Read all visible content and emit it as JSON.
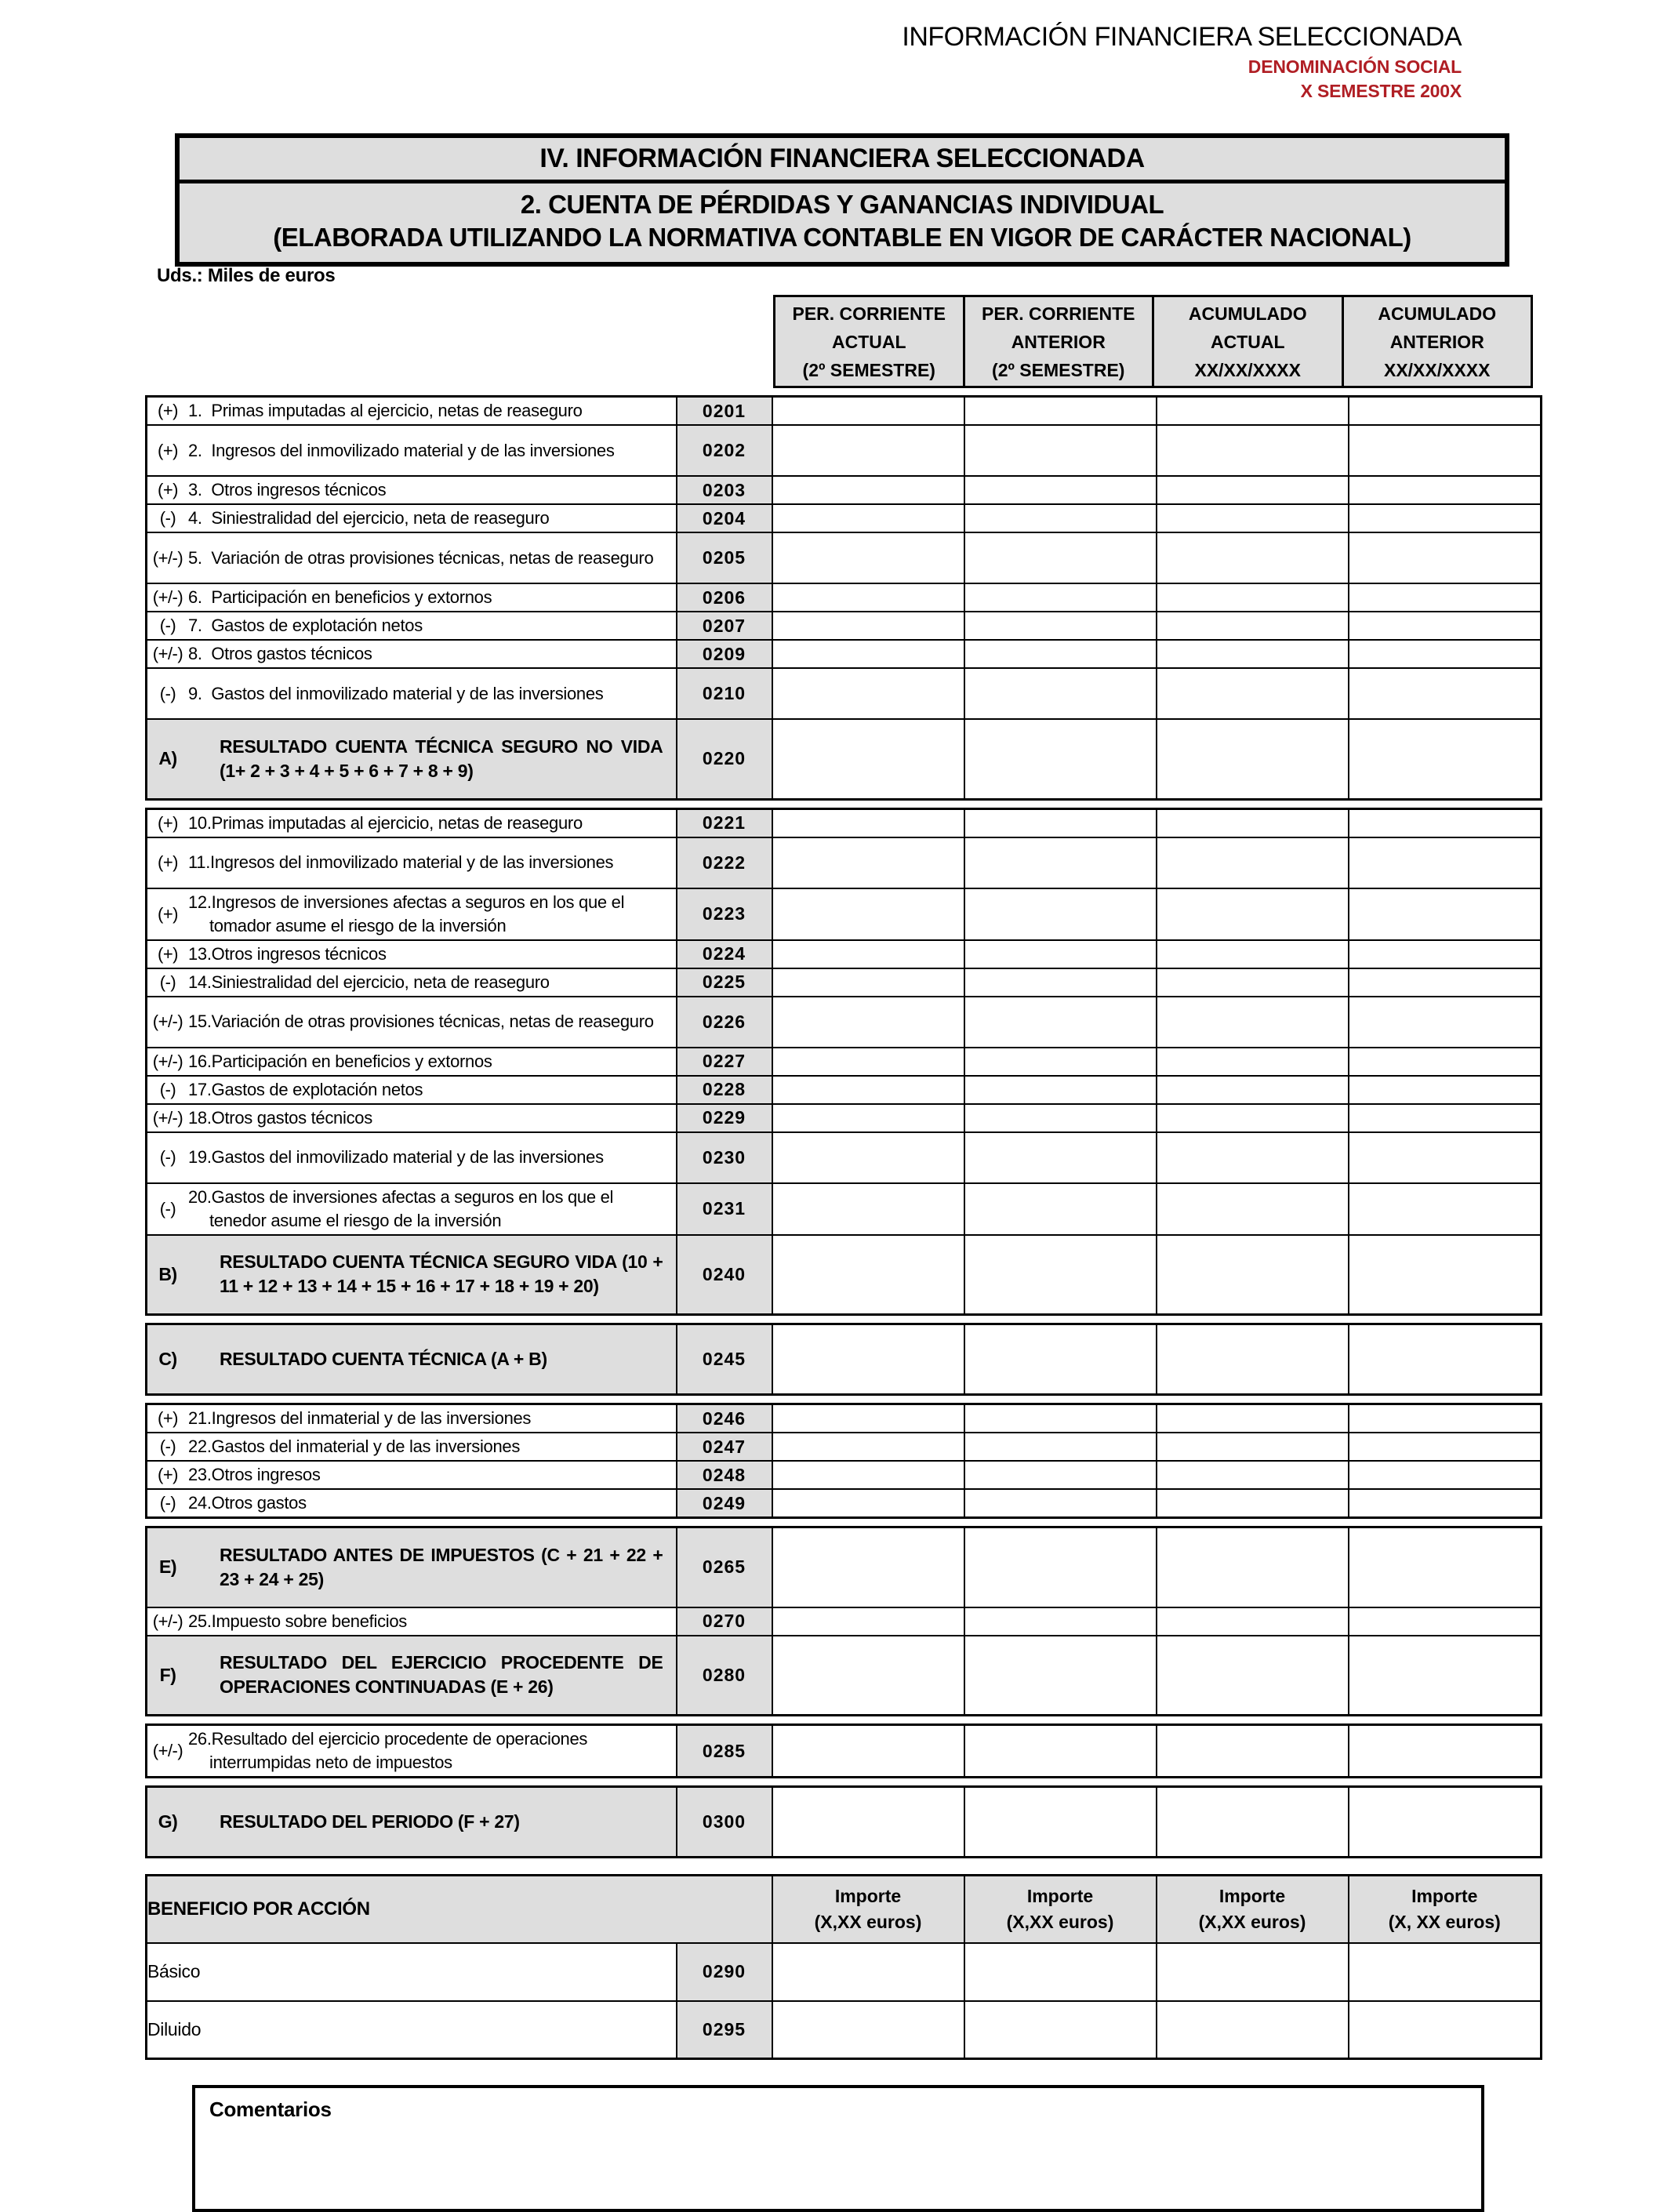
{
  "colors": {
    "accent_red": "#B01E24",
    "cell_gray": "#DEDEDE"
  },
  "doc_header": {
    "line1": "INFORMACIÓN FINANCIERA SELECCIONADA",
    "line2": "DENOMINACIÓN SOCIAL",
    "line3": "X SEMESTRE 200X"
  },
  "title_box": {
    "line1": "IV. INFORMACIÓN FINANCIERA SELECCIONADA",
    "line2": "2. CUENTA DE PÉRDIDAS Y GANANCIAS INDIVIDUAL",
    "line3": "(ELABORADA UTILIZANDO LA NORMATIVA CONTABLE EN VIGOR DE CARÁCTER NACIONAL)"
  },
  "units_label": "Uds.: Miles de euros",
  "column_headers": [
    {
      "line1": "PER. CORRIENTE",
      "line2": "ACTUAL",
      "line3": "(2º SEMESTRE)"
    },
    {
      "line1": "PER. CORRIENTE",
      "line2": "ANTERIOR",
      "line3": "(2º SEMESTRE)"
    },
    {
      "line1": "ACUMULADO",
      "line2": "ACTUAL",
      "line3": "XX/XX/XXXX"
    },
    {
      "line1": "ACUMULADO",
      "line2": "ANTERIOR",
      "line3": "XX/XX/XXXX"
    }
  ],
  "table": {
    "value_columns": 4,
    "blocks": [
      {
        "rows": [
          {
            "type": "item",
            "sign": "(+)",
            "text": "1.  Primas imputadas al ejercicio, netas de reaseguro",
            "code": "0201",
            "lines": 1
          },
          {
            "type": "item",
            "sign": "(+)",
            "text": "2.  Ingresos del inmovilizado material y de las inversiones",
            "code": "0202",
            "lines": 2
          },
          {
            "type": "item",
            "sign": "(+)",
            "text": "3.  Otros ingresos técnicos",
            "code": "0203",
            "lines": 1
          },
          {
            "type": "item",
            "sign": "(-)",
            "text": "4.  Siniestralidad del ejercicio, neta de reaseguro",
            "code": "0204",
            "lines": 1
          },
          {
            "type": "item",
            "sign": "(+/-)",
            "text": "5.  Variación de otras provisiones técnicas, netas de reaseguro",
            "code": "0205",
            "lines": 2
          },
          {
            "type": "item",
            "sign": "(+/-)",
            "text": "6.  Participación en beneficios y extornos",
            "code": "0206",
            "lines": 1
          },
          {
            "type": "item",
            "sign": "(-)",
            "text": "7.  Gastos de explotación netos",
            "code": "0207",
            "lines": 1
          },
          {
            "type": "item",
            "sign": "(+/-)",
            "text": "8.  Otros gastos técnicos",
            "code": "0209",
            "lines": 1
          },
          {
            "type": "item",
            "sign": "(-)",
            "text": "9.  Gastos del inmovilizado material y de las inversiones",
            "code": "0210",
            "lines": 2
          },
          {
            "type": "section",
            "sign": "A)",
            "text": "RESULTADO CUENTA TÉCNICA SEGURO NO VIDA (1+ 2 + 3 + 4 + 5 + 6 + 7 + 8 + 9)",
            "code": "0220",
            "lines": 2
          }
        ]
      },
      {
        "rows": [
          {
            "type": "item",
            "sign": "(+)",
            "text": "10.Primas imputadas al ejercicio, netas de reaseguro",
            "code": "0221",
            "lines": 1
          },
          {
            "type": "item",
            "sign": "(+)",
            "text": "11.Ingresos del inmovilizado material y de las inversiones",
            "code": "0222",
            "lines": 2
          },
          {
            "type": "item",
            "sign": "(+)",
            "text": "12.Ingresos de inversiones afectas a seguros en los que el tomador asume el riesgo de la inversión",
            "code": "0223",
            "lines": 2
          },
          {
            "type": "item",
            "sign": "(+)",
            "text": "13.Otros ingresos técnicos",
            "code": "0224",
            "lines": 1
          },
          {
            "type": "item",
            "sign": "(-)",
            "text": "14.Siniestralidad del ejercicio, neta de reaseguro",
            "code": "0225",
            "lines": 1
          },
          {
            "type": "item",
            "sign": "(+/-)",
            "text": "15.Variación de otras provisiones técnicas, netas de reaseguro",
            "code": "0226",
            "lines": 2
          },
          {
            "type": "item",
            "sign": "(+/-)",
            "text": "16.Participación en beneficios y extornos",
            "code": "0227",
            "lines": 1
          },
          {
            "type": "item",
            "sign": "(-)",
            "text": "17.Gastos de explotación netos",
            "code": "0228",
            "lines": 1
          },
          {
            "type": "item",
            "sign": "(+/-)",
            "text": "18.Otros gastos técnicos",
            "code": "0229",
            "lines": 1
          },
          {
            "type": "item",
            "sign": "(-)",
            "text": "19.Gastos del inmovilizado material y de las inversiones",
            "code": "0230",
            "lines": 2
          },
          {
            "type": "item",
            "sign": "(-)",
            "text": "20.Gastos de inversiones afectas a seguros en los que el tenedor asume el riesgo de la inversión",
            "code": "0231",
            "lines": 2
          },
          {
            "type": "section",
            "sign": "B)",
            "text": "RESULTADO CUENTA TÉCNICA SEGURO VIDA (10 + 11 + 12 + 13 + 14 + 15 + 16 + 17 + 18 + 19 + 20)",
            "code": "0240",
            "lines": 2
          }
        ]
      },
      {
        "rows": [
          {
            "type": "section",
            "sign": "C)",
            "text": "RESULTADO CUENTA TÉCNICA (A + B)",
            "code": "0245",
            "lines": 1
          }
        ]
      },
      {
        "rows": [
          {
            "type": "item",
            "sign": "(+)",
            "text": "21.Ingresos del inmaterial y de las inversiones",
            "code": "0246",
            "lines": 1
          },
          {
            "type": "item",
            "sign": "(-)",
            "text": "22.Gastos del inmaterial y de las inversiones",
            "code": "0247",
            "lines": 1
          },
          {
            "type": "item",
            "sign": "(+)",
            "text": "23.Otros ingresos",
            "code": "0248",
            "lines": 1
          },
          {
            "type": "item",
            "sign": "(-)",
            "text": "24.Otros gastos",
            "code": "0249",
            "lines": 1
          }
        ]
      },
      {
        "rows": [
          {
            "type": "section",
            "sign": "E)",
            "text": "RESULTADO ANTES DE IMPUESTOS (C + 21 + 22 + 23 + 24 + 25)",
            "code": "0265",
            "lines": 2
          },
          {
            "type": "item",
            "sign": "(+/-)",
            "text": "25.Impuesto sobre beneficios",
            "code": "0270",
            "lines": 1
          },
          {
            "type": "section",
            "sign": "F)",
            "text": "RESULTADO DEL EJERCICIO PROCEDENTE DE OPERACIONES CONTINUADAS (E + 26)",
            "code": "0280",
            "lines": 2
          }
        ]
      },
      {
        "rows": [
          {
            "type": "item",
            "sign": "(+/-)",
            "text": "26.Resultado del ejercicio procedente de operaciones interrumpidas neto de impuestos",
            "code": "0285",
            "lines": 2
          }
        ]
      },
      {
        "rows": [
          {
            "type": "section",
            "sign": "G)",
            "text": "RESULTADO DEL PERIODO (F + 27)",
            "code": "0300",
            "lines": 1
          }
        ]
      }
    ]
  },
  "eps": {
    "title": "BENEFICIO POR ACCIÓN",
    "importe_headers": [
      {
        "line1": "Importe",
        "line2": "(X,XX euros)"
      },
      {
        "line1": "Importe",
        "line2": "(X,XX euros)"
      },
      {
        "line1": "Importe",
        "line2": "(X,XX euros)"
      },
      {
        "line1": "Importe",
        "line2": "(X, XX euros)"
      }
    ],
    "rows": [
      {
        "label": "Básico",
        "code": "0290"
      },
      {
        "label": "Diluido",
        "code": "0295"
      }
    ]
  },
  "comments": {
    "label": "Comentarios"
  }
}
